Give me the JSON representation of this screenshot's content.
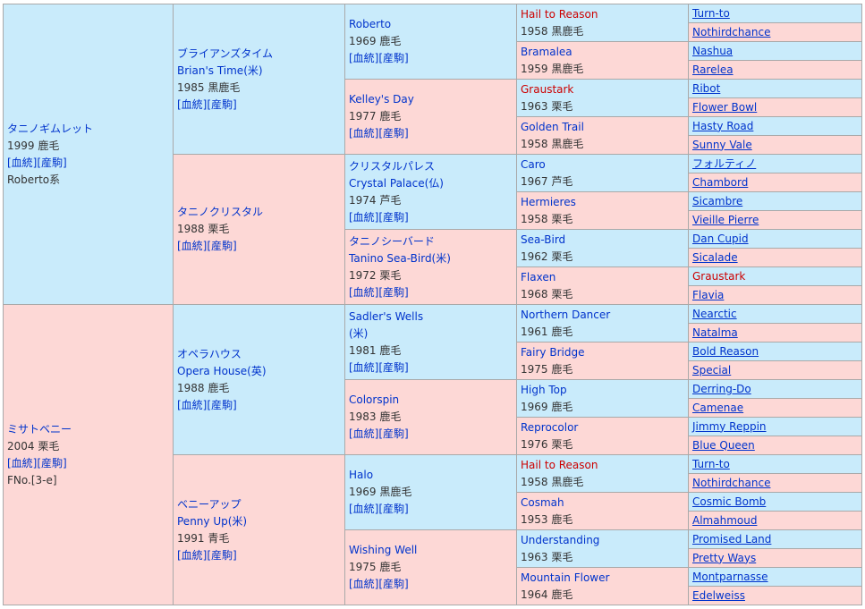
{
  "gen1": [
    {
      "name": "タニノギムレット",
      "year": "1999",
      "coat": "鹿毛",
      "links": [
        "[血統]",
        "[産駒]"
      ],
      "extra": "Roberto系"
    },
    {
      "name": "ミサトベニー",
      "year": "2004",
      "coat": "栗毛",
      "links": [
        "[血統]",
        "[産駒]"
      ],
      "extra": "FNo.[3-e]"
    }
  ],
  "gen2": [
    {
      "name": "ブライアンズタイム",
      "alt": "Brian's Time(米)",
      "year": "1985",
      "coat": "黒鹿毛",
      "links": [
        "[血統]",
        "[産駒]"
      ]
    },
    {
      "name": "タニノクリスタル",
      "alt": "",
      "year": "1988",
      "coat": "栗毛",
      "links": [
        "[血統]",
        "[産駒]"
      ]
    },
    {
      "name": "オペラハウス",
      "alt": "Opera House(英)",
      "year": "1988",
      "coat": "鹿毛",
      "links": [
        "[血統]",
        "[産駒]"
      ]
    },
    {
      "name": "ベニーアップ",
      "alt": "Penny Up(米)",
      "year": "1991",
      "coat": "青毛",
      "links": [
        "[血統]",
        "[産駒]"
      ]
    }
  ],
  "gen3": [
    {
      "name": "Roberto",
      "alt": "",
      "year": "1969",
      "coat": "鹿毛",
      "links": [
        "[血統]",
        "[産駒]"
      ]
    },
    {
      "name": "Kelley's Day",
      "alt": "",
      "year": "1977",
      "coat": "鹿毛",
      "links": [
        "[血統]",
        "[産駒]"
      ]
    },
    {
      "name": "クリスタルパレス",
      "alt": "Crystal Palace(仏)",
      "year": "1974",
      "coat": "芦毛",
      "links": [
        "[血統]",
        "[産駒]"
      ]
    },
    {
      "name": "タニノシーバード",
      "alt": "Tanino Sea-Bird(米)",
      "year": "1972",
      "coat": "栗毛",
      "links": [
        "[血統]",
        "[産駒]"
      ]
    },
    {
      "name": "Sadler's Wells",
      "alt": "(米)",
      "year": "1981",
      "coat": "鹿毛",
      "links": [
        "[血統]",
        "[産駒]"
      ]
    },
    {
      "name": "Colorspin",
      "alt": "",
      "year": "1983",
      "coat": "鹿毛",
      "links": [
        "[血統]",
        "[産駒]"
      ]
    },
    {
      "name": "Halo",
      "alt": "",
      "year": "1969",
      "coat": "黒鹿毛",
      "links": [
        "[血統]",
        "[産駒]"
      ]
    },
    {
      "name": "Wishing Well",
      "alt": "",
      "year": "1975",
      "coat": "鹿毛",
      "links": [
        "[血統]",
        "[産駒]"
      ]
    }
  ],
  "gen4": [
    {
      "name": "Hail to Reason",
      "year": "1958",
      "coat": "黒鹿毛",
      "red": true
    },
    {
      "name": "Bramalea",
      "year": "1959",
      "coat": "黒鹿毛",
      "red": false
    },
    {
      "name": "Graustark",
      "year": "1963",
      "coat": "栗毛",
      "red": true
    },
    {
      "name": "Golden Trail",
      "year": "1958",
      "coat": "黒鹿毛",
      "red": false
    },
    {
      "name": "Caro",
      "year": "1967",
      "coat": "芦毛",
      "red": false
    },
    {
      "name": "Hermieres",
      "year": "1958",
      "coat": "栗毛",
      "red": false
    },
    {
      "name": "Sea-Bird",
      "year": "1962",
      "coat": "栗毛",
      "red": false
    },
    {
      "name": "Flaxen",
      "year": "1968",
      "coat": "栗毛",
      "red": false
    },
    {
      "name": "Northern Dancer",
      "year": "1961",
      "coat": "鹿毛",
      "red": false
    },
    {
      "name": "Fairy Bridge",
      "year": "1975",
      "coat": "鹿毛",
      "red": false
    },
    {
      "name": "High Top",
      "year": "1969",
      "coat": "鹿毛",
      "red": false
    },
    {
      "name": "Reprocolor",
      "year": "1976",
      "coat": "栗毛",
      "red": false
    },
    {
      "name": "Hail to Reason",
      "year": "1958",
      "coat": "黒鹿毛",
      "red": true
    },
    {
      "name": "Cosmah",
      "year": "1953",
      "coat": "鹿毛",
      "red": false
    },
    {
      "name": "Understanding",
      "year": "1963",
      "coat": "栗毛",
      "red": false
    },
    {
      "name": "Mountain Flower",
      "year": "1964",
      "coat": "鹿毛",
      "red": false
    }
  ],
  "gen5": [
    {
      "name": "Turn-to",
      "red": false
    },
    {
      "name": "Nothirdchance",
      "red": false
    },
    {
      "name": "Nashua",
      "red": false
    },
    {
      "name": "Rarelea",
      "red": false
    },
    {
      "name": "Ribot",
      "red": false
    },
    {
      "name": "Flower Bowl",
      "red": false
    },
    {
      "name": "Hasty Road",
      "red": false
    },
    {
      "name": "Sunny Vale",
      "red": false
    },
    {
      "name": "フォルティノ",
      "red": false
    },
    {
      "name": "Chambord",
      "red": false
    },
    {
      "name": "Sicambre",
      "red": false
    },
    {
      "name": "Vieille Pierre",
      "red": false
    },
    {
      "name": "Dan Cupid",
      "red": false
    },
    {
      "name": "Sicalade",
      "red": false
    },
    {
      "name": "Graustark",
      "red": true
    },
    {
      "name": "Flavia",
      "red": false
    },
    {
      "name": "Nearctic",
      "red": false
    },
    {
      "name": "Natalma",
      "red": false
    },
    {
      "name": "Bold Reason",
      "red": false
    },
    {
      "name": "Special",
      "red": false
    },
    {
      "name": "Derring-Do",
      "red": false
    },
    {
      "name": "Camenae",
      "red": false
    },
    {
      "name": "Jimmy Reppin",
      "red": false
    },
    {
      "name": "Blue Queen",
      "red": false
    },
    {
      "name": "Turn-to",
      "red": false
    },
    {
      "name": "Nothirdchance",
      "red": false
    },
    {
      "name": "Cosmic Bomb",
      "red": false
    },
    {
      "name": "Almahmoud",
      "red": false
    },
    {
      "name": "Promised Land",
      "red": false
    },
    {
      "name": "Pretty Ways",
      "red": false
    },
    {
      "name": "Montparnasse",
      "red": false
    },
    {
      "name": "Edelweiss",
      "red": false
    }
  ]
}
